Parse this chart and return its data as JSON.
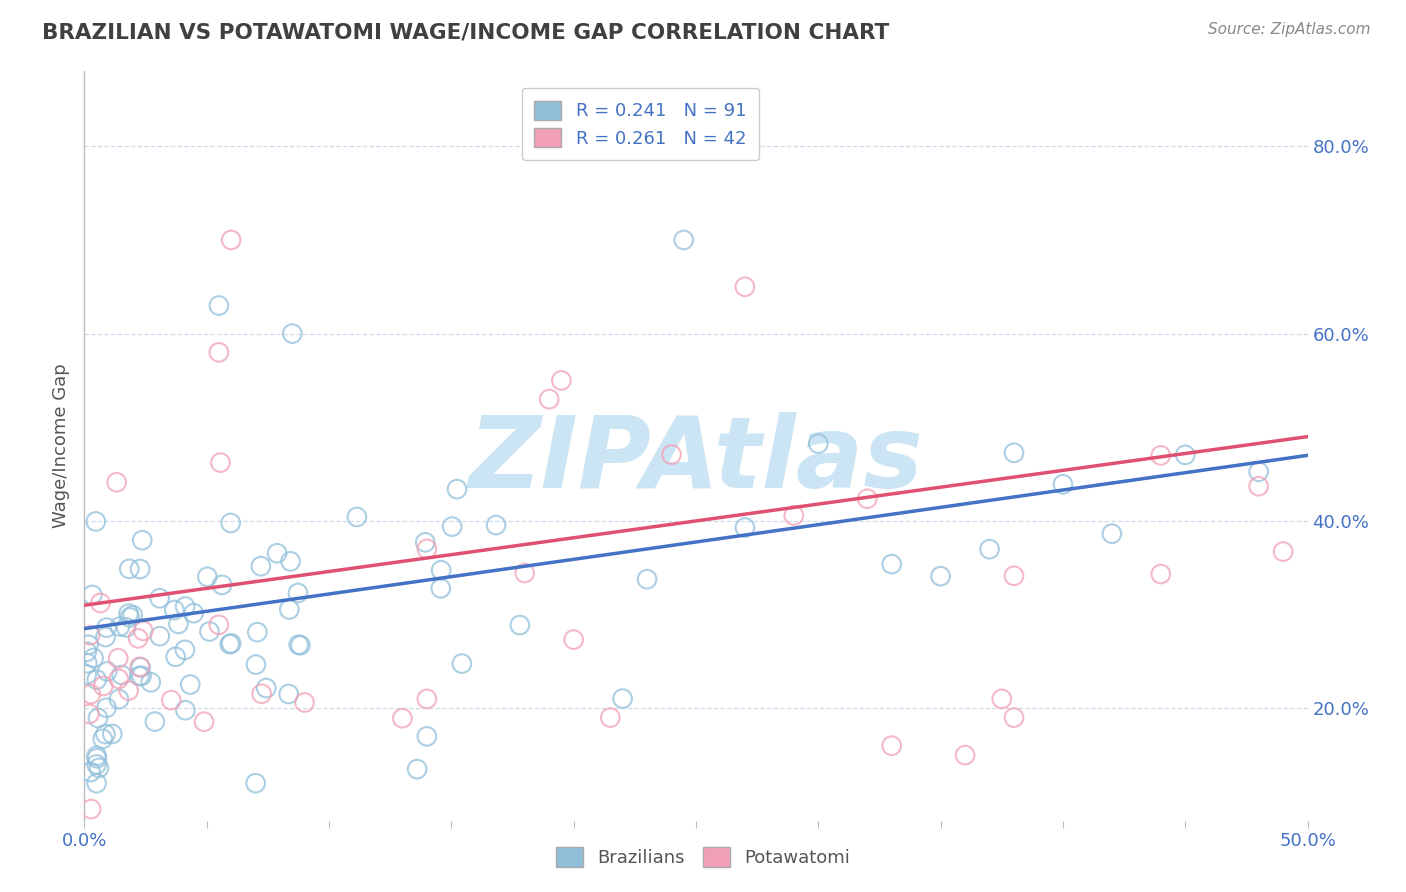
{
  "title": "BRAZILIAN VS POTAWATOMI WAGE/INCOME GAP CORRELATION CHART",
  "source": "Source: ZipAtlas.com",
  "ylabel": "Wage/Income Gap",
  "xlim": [
    0.0,
    0.5
  ],
  "ylim": [
    0.08,
    0.88
  ],
  "xtick_positions": [
    0.0,
    0.05,
    0.1,
    0.15,
    0.2,
    0.25,
    0.3,
    0.35,
    0.4,
    0.45,
    0.5
  ],
  "xticklabels": [
    "0.0%",
    "",
    "",
    "",
    "",
    "",
    "",
    "",
    "",
    "",
    "50.0%"
  ],
  "ytick_positions": [
    0.2,
    0.4,
    0.6,
    0.8
  ],
  "ytick_labels": [
    "20.0%",
    "40.0%",
    "60.0%",
    "80.0%"
  ],
  "legend_r1": "R = 0.241",
  "legend_n1": "N = 91",
  "legend_r2": "R = 0.261",
  "legend_n2": "N = 42",
  "color_blue": "#91bfda",
  "color_pink": "#f2a0b5",
  "color_line_blue": "#4472c4",
  "color_line_pink": "#e05070",
  "color_title": "#404040",
  "color_source": "#888888",
  "color_watermark": "#cce5f5",
  "color_axis_label": "#4472c4",
  "watermark": "ZIPAtlas",
  "line_blue_intercept": 0.285,
  "line_blue_slope": 0.37,
  "line_pink_intercept": 0.31,
  "line_pink_slope": 0.36
}
